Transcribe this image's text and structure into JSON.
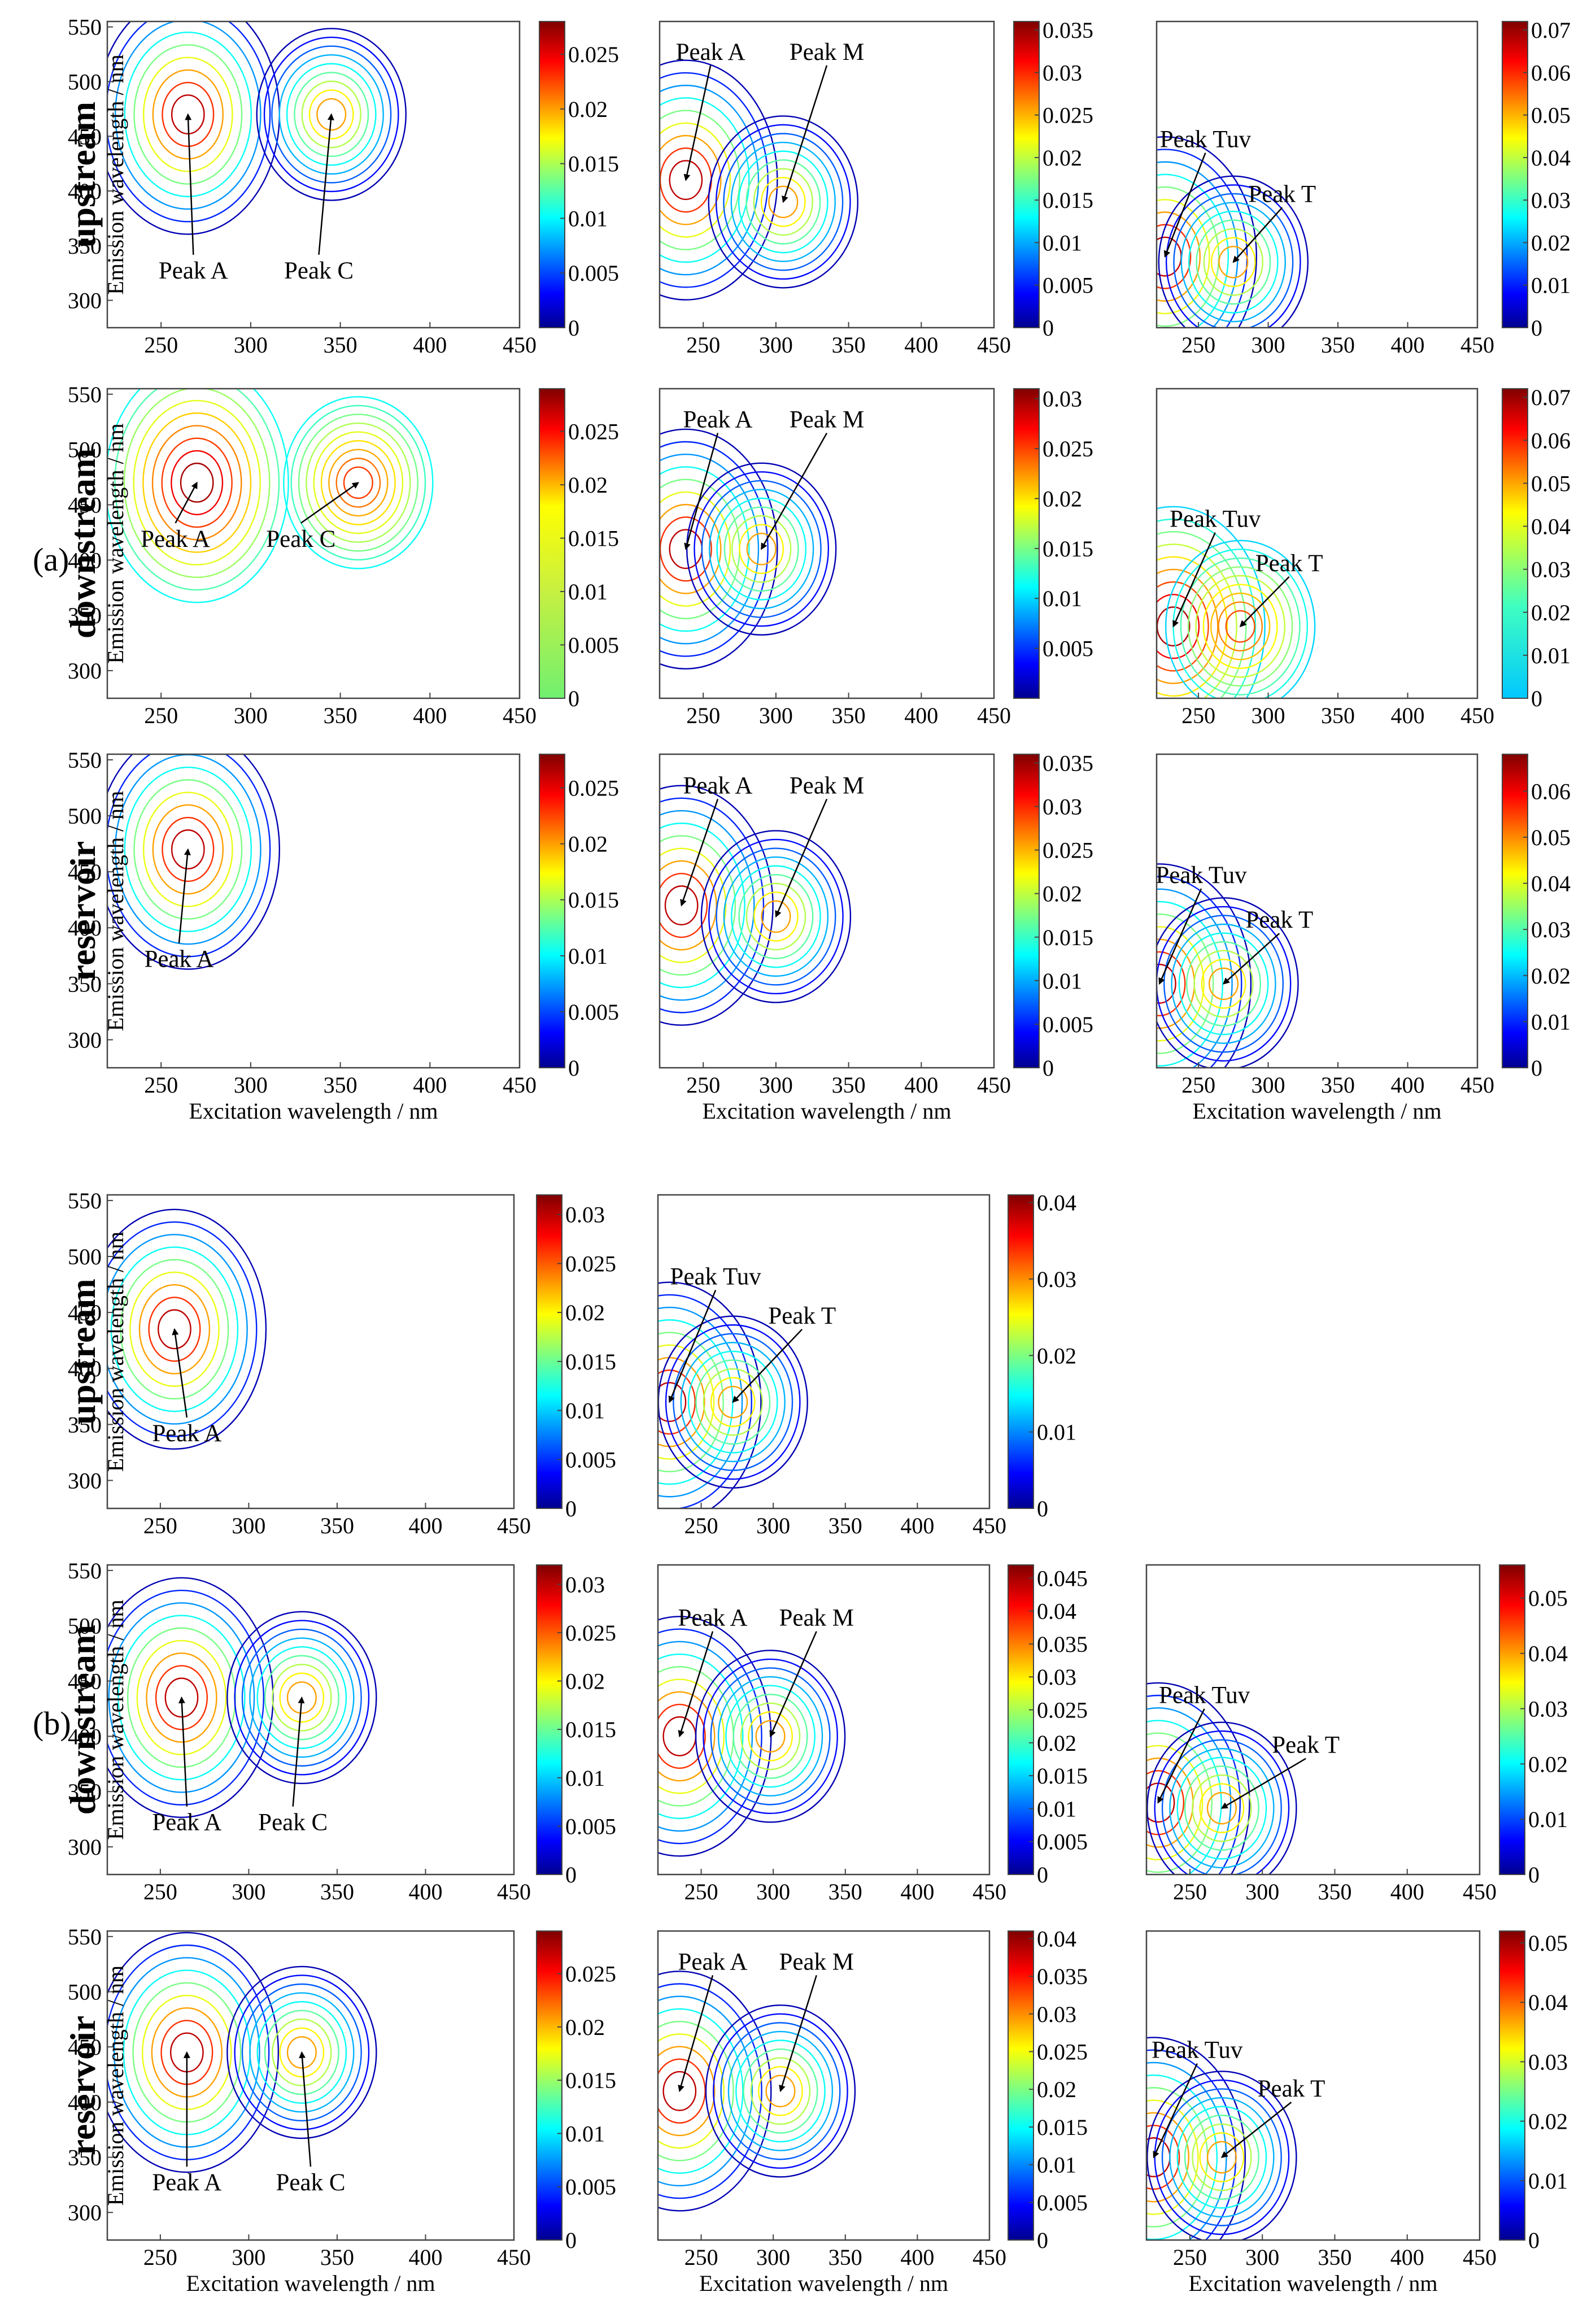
{
  "chart_data": {
    "type": "contour",
    "group_labels": [
      "(a)",
      "(b)"
    ],
    "x_axis_label": "Excitation wavelength / nm",
    "y_axis_label": "Emission wavelength / nm",
    "panels": [
      {
        "group": 0,
        "row": 0,
        "col": 0,
        "row_label": "upstream",
        "show_ylabel": true,
        "show_xlabel": false,
        "xticks": [
          250,
          300,
          350,
          400,
          450
        ],
        "xlim": [
          220,
          450
        ],
        "yticks": [
          300,
          350,
          400,
          450,
          500,
          550
        ],
        "ylim": [
          275,
          555
        ],
        "cbar_ticks": [
          "0",
          "0.005",
          "0.01",
          "0.015",
          "0.02",
          "0.025"
        ],
        "cbar_max": 0.028,
        "cbar_colormap": "jet",
        "peaks": [
          {
            "label": "Peak A",
            "x": 265,
            "y": 470
          },
          {
            "label": "Peak C",
            "x": 345,
            "y": 470
          }
        ],
        "labels": [
          {
            "label": "Peak A",
            "x": 268,
            "y": 320
          },
          {
            "label": "Peak C",
            "x": 338,
            "y": 320
          }
        ]
      },
      {
        "group": 0,
        "row": 0,
        "col": 1,
        "show_ylabel": false,
        "show_xlabel": false,
        "xticks": [
          250,
          300,
          350,
          400,
          450
        ],
        "xlim": [
          220,
          450
        ],
        "cbar_ticks": [
          "0",
          "0.005",
          "0.01",
          "0.015",
          "0.02",
          "0.025",
          "0.03",
          "0.035"
        ],
        "cbar_max": 0.036,
        "cbar_colormap": "jet",
        "peaks": [
          {
            "label": "Peak A",
            "x": 238,
            "y": 410
          },
          {
            "label": "Peak M",
            "x": 305,
            "y": 390
          }
        ],
        "labels": [
          {
            "label": "Peak A",
            "x": 255,
            "y": 520
          },
          {
            "label": "Peak M",
            "x": 335,
            "y": 520
          }
        ]
      },
      {
        "group": 0,
        "row": 0,
        "col": 2,
        "show_ylabel": false,
        "show_xlabel": false,
        "xticks": [
          250,
          300,
          350,
          400,
          450
        ],
        "xlim": [
          220,
          450
        ],
        "cbar_ticks": [
          "0",
          "0.01",
          "0.02",
          "0.03",
          "0.04",
          "0.05",
          "0.06",
          "0.07"
        ],
        "cbar_max": 0.072,
        "cbar_colormap": "jet",
        "peaks": [
          {
            "label": "Peak Tuv",
            "x": 226,
            "y": 340
          },
          {
            "label": "Peak T",
            "x": 275,
            "y": 335
          }
        ],
        "labels": [
          {
            "label": "Peak Tuv",
            "x": 255,
            "y": 440
          },
          {
            "label": "Peak T",
            "x": 310,
            "y": 390
          }
        ]
      },
      {
        "group": 0,
        "row": 1,
        "col": 0,
        "row_label": "downstream",
        "show_ylabel": true,
        "show_xlabel": false,
        "xticks": [
          250,
          300,
          350,
          400,
          450
        ],
        "xlim": [
          220,
          450
        ],
        "yticks": [
          300,
          350,
          400,
          450,
          500,
          550
        ],
        "ylim": [
          275,
          555
        ],
        "cbar_ticks": [
          "0",
          "0.005",
          "0.01",
          "0.015",
          "0.02",
          "0.025"
        ],
        "cbar_max": 0.029,
        "cbar_colormap": "jet_green",
        "peaks": [
          {
            "label": "Peak A",
            "x": 270,
            "y": 470
          },
          {
            "label": "Peak C",
            "x": 360,
            "y": 470
          }
        ],
        "labels": [
          {
            "label": "Peak A",
            "x": 258,
            "y": 412
          },
          {
            "label": "Peak C",
            "x": 328,
            "y": 412
          }
        ]
      },
      {
        "group": 0,
        "row": 1,
        "col": 1,
        "show_ylabel": false,
        "show_xlabel": false,
        "xticks": [
          250,
          300,
          350,
          400,
          450
        ],
        "xlim": [
          220,
          450
        ],
        "cbar_ticks": [
          "0.005",
          "0.01",
          "0.015",
          "0.02",
          "0.025",
          "0.03"
        ],
        "cbar_max": 0.031,
        "cbar_colormap": "jet",
        "peaks": [
          {
            "label": "Peak A",
            "x": 238,
            "y": 410
          },
          {
            "label": "Peak M",
            "x": 290,
            "y": 410
          }
        ],
        "labels": [
          {
            "label": "Peak A",
            "x": 260,
            "y": 520
          },
          {
            "label": "Peak M",
            "x": 335,
            "y": 520
          }
        ]
      },
      {
        "group": 0,
        "row": 1,
        "col": 2,
        "show_ylabel": false,
        "show_xlabel": false,
        "xticks": [
          250,
          300,
          350,
          400,
          450
        ],
        "xlim": [
          220,
          450
        ],
        "cbar_ticks": [
          "0",
          "0.01",
          "0.02",
          "0.03",
          "0.04",
          "0.05",
          "0.06",
          "0.07"
        ],
        "cbar_max": 0.072,
        "cbar_colormap": "jet_cyan",
        "peaks": [
          {
            "label": "Peak Tuv",
            "x": 232,
            "y": 340
          },
          {
            "label": "Peak T",
            "x": 280,
            "y": 340
          }
        ],
        "labels": [
          {
            "label": "Peak Tuv",
            "x": 262,
            "y": 430
          },
          {
            "label": "Peak T",
            "x": 315,
            "y": 390
          }
        ]
      },
      {
        "group": 0,
        "row": 2,
        "col": 0,
        "row_label": "reservoir",
        "show_ylabel": true,
        "show_xlabel": true,
        "xticks": [
          250,
          300,
          350,
          400,
          450
        ],
        "xlim": [
          220,
          450
        ],
        "yticks": [
          300,
          350,
          400,
          450,
          500,
          550
        ],
        "ylim": [
          275,
          555
        ],
        "cbar_ticks": [
          "0",
          "0.005",
          "0.01",
          "0.015",
          "0.02",
          "0.025"
        ],
        "cbar_max": 0.028,
        "cbar_colormap": "jet",
        "peaks": [
          {
            "label": "Peak A",
            "x": 265,
            "y": 470
          }
        ],
        "labels": [
          {
            "label": "Peak A",
            "x": 260,
            "y": 365
          }
        ]
      },
      {
        "group": 0,
        "row": 2,
        "col": 1,
        "show_ylabel": false,
        "show_xlabel": true,
        "xticks": [
          250,
          300,
          350,
          400,
          450
        ],
        "xlim": [
          220,
          450
        ],
        "cbar_ticks": [
          "0",
          "0.005",
          "0.01",
          "0.015",
          "0.02",
          "0.025",
          "0.03",
          "0.035"
        ],
        "cbar_max": 0.036,
        "cbar_colormap": "jet",
        "peaks": [
          {
            "label": "Peak A",
            "x": 235,
            "y": 420
          },
          {
            "label": "Peak M",
            "x": 300,
            "y": 410
          }
        ],
        "labels": [
          {
            "label": "Peak A",
            "x": 260,
            "y": 520
          },
          {
            "label": "Peak M",
            "x": 335,
            "y": 520
          }
        ]
      },
      {
        "group": 0,
        "row": 2,
        "col": 2,
        "show_ylabel": false,
        "show_xlabel": true,
        "xticks": [
          250,
          300,
          350,
          400,
          450
        ],
        "xlim": [
          220,
          450
        ],
        "cbar_ticks": [
          "0",
          "0.01",
          "0.02",
          "0.03",
          "0.04",
          "0.05",
          "0.06"
        ],
        "cbar_max": 0.068,
        "cbar_colormap": "jet",
        "peaks": [
          {
            "label": "Peak Tuv",
            "x": 222,
            "y": 350
          },
          {
            "label": "Peak T",
            "x": 268,
            "y": 350
          }
        ],
        "labels": [
          {
            "label": "Peak Tuv",
            "x": 252,
            "y": 440
          },
          {
            "label": "Peak T",
            "x": 308,
            "y": 400
          }
        ]
      },
      {
        "group": 1,
        "row": 0,
        "col": 0,
        "row_label": "upstream",
        "show_ylabel": true,
        "show_xlabel": false,
        "xticks": [
          250,
          300,
          350,
          400,
          450
        ],
        "xlim": [
          220,
          450
        ],
        "yticks": [
          300,
          350,
          400,
          450,
          500,
          550
        ],
        "ylim": [
          275,
          555
        ],
        "cbar_ticks": [
          "0",
          "0.005",
          "0.01",
          "0.015",
          "0.02",
          "0.025",
          "0.03"
        ],
        "cbar_max": 0.032,
        "cbar_colormap": "jet",
        "peaks": [
          {
            "label": "Peak A",
            "x": 258,
            "y": 435
          }
        ],
        "labels": [
          {
            "label": "Peak A",
            "x": 265,
            "y": 335
          }
        ]
      },
      {
        "group": 1,
        "row": 0,
        "col": 1,
        "show_ylabel": false,
        "show_xlabel": false,
        "xticks": [
          250,
          300,
          350,
          400,
          450
        ],
        "xlim": [
          220,
          450
        ],
        "cbar_ticks": [
          "0",
          "0.01",
          "0.02",
          "0.03",
          "0.04"
        ],
        "cbar_max": 0.041,
        "cbar_colormap": "jet",
        "peaks": [
          {
            "label": "Peak Tuv",
            "x": 228,
            "y": 370
          },
          {
            "label": "Peak T",
            "x": 272,
            "y": 370
          }
        ],
        "labels": [
          {
            "label": "Peak Tuv",
            "x": 260,
            "y": 475
          },
          {
            "label": "Peak T",
            "x": 320,
            "y": 440
          }
        ]
      },
      {
        "group": 1,
        "row": 1,
        "col": 0,
        "row_label": "downstream",
        "show_ylabel": true,
        "show_xlabel": false,
        "xticks": [
          250,
          300,
          350,
          400,
          450
        ],
        "xlim": [
          220,
          450
        ],
        "yticks": [
          300,
          350,
          400,
          450,
          500,
          550
        ],
        "ylim": [
          275,
          555
        ],
        "cbar_ticks": [
          "0",
          "0.005",
          "0.01",
          "0.015",
          "0.02",
          "0.025",
          "0.03"
        ],
        "cbar_max": 0.032,
        "cbar_colormap": "jet",
        "peaks": [
          {
            "label": "Peak A",
            "x": 262,
            "y": 435
          },
          {
            "label": "Peak C",
            "x": 330,
            "y": 435
          }
        ],
        "labels": [
          {
            "label": "Peak A",
            "x": 265,
            "y": 315
          },
          {
            "label": "Peak C",
            "x": 325,
            "y": 315
          }
        ]
      },
      {
        "group": 1,
        "row": 1,
        "col": 1,
        "show_ylabel": false,
        "show_xlabel": false,
        "xticks": [
          250,
          300,
          350,
          400,
          450
        ],
        "xlim": [
          220,
          450
        ],
        "cbar_ticks": [
          "0",
          "0.005",
          "0.01",
          "0.015",
          "0.02",
          "0.025",
          "0.03",
          "0.035",
          "0.04",
          "0.045"
        ],
        "cbar_max": 0.047,
        "cbar_colormap": "jet",
        "peaks": [
          {
            "label": "Peak A",
            "x": 235,
            "y": 400
          },
          {
            "label": "Peak M",
            "x": 298,
            "y": 400
          }
        ],
        "labels": [
          {
            "label": "Peak A",
            "x": 258,
            "y": 500
          },
          {
            "label": "Peak M",
            "x": 330,
            "y": 500
          }
        ]
      },
      {
        "group": 1,
        "row": 1,
        "col": 2,
        "show_ylabel": false,
        "show_xlabel": false,
        "xticks": [
          250,
          300,
          350,
          400,
          450
        ],
        "xlim": [
          220,
          450
        ],
        "cbar_ticks": [
          "0",
          "0.01",
          "0.02",
          "0.03",
          "0.04",
          "0.05"
        ],
        "cbar_max": 0.056,
        "cbar_colormap": "jet",
        "peaks": [
          {
            "label": "Peak Tuv",
            "x": 228,
            "y": 340
          },
          {
            "label": "Peak T",
            "x": 272,
            "y": 335
          }
        ],
        "labels": [
          {
            "label": "Peak Tuv",
            "x": 260,
            "y": 430
          },
          {
            "label": "Peak T",
            "x": 330,
            "y": 385
          }
        ]
      },
      {
        "group": 1,
        "row": 2,
        "col": 0,
        "row_label": "reservoir",
        "show_ylabel": true,
        "show_xlabel": true,
        "xticks": [
          250,
          300,
          350,
          400,
          450
        ],
        "xlim": [
          220,
          450
        ],
        "yticks": [
          300,
          350,
          400,
          450,
          500,
          550
        ],
        "ylim": [
          275,
          555
        ],
        "cbar_ticks": [
          "0",
          "0.005",
          "0.01",
          "0.015",
          "0.02",
          "0.025"
        ],
        "cbar_max": 0.029,
        "cbar_colormap": "jet",
        "peaks": [
          {
            "label": "Peak A",
            "x": 265,
            "y": 445
          },
          {
            "label": "Peak C",
            "x": 330,
            "y": 445
          }
        ],
        "labels": [
          {
            "label": "Peak A",
            "x": 265,
            "y": 320
          },
          {
            "label": "Peak C",
            "x": 335,
            "y": 320
          }
        ]
      },
      {
        "group": 1,
        "row": 2,
        "col": 1,
        "show_ylabel": false,
        "show_xlabel": true,
        "xticks": [
          250,
          300,
          350,
          400,
          450
        ],
        "xlim": [
          220,
          450
        ],
        "cbar_ticks": [
          "0",
          "0.005",
          "0.01",
          "0.015",
          "0.02",
          "0.025",
          "0.03",
          "0.035",
          "0.04"
        ],
        "cbar_max": 0.041,
        "cbar_colormap": "jet",
        "peaks": [
          {
            "label": "Peak A",
            "x": 235,
            "y": 410
          },
          {
            "label": "Peak M",
            "x": 305,
            "y": 410
          }
        ],
        "labels": [
          {
            "label": "Peak A",
            "x": 258,
            "y": 520
          },
          {
            "label": "Peak M",
            "x": 330,
            "y": 520
          }
        ]
      },
      {
        "group": 1,
        "row": 2,
        "col": 2,
        "show_ylabel": false,
        "show_xlabel": true,
        "xticks": [
          250,
          300,
          350,
          400,
          450
        ],
        "xlim": [
          220,
          450
        ],
        "cbar_ticks": [
          "0",
          "0.01",
          "0.02",
          "0.03",
          "0.04",
          "0.05"
        ],
        "cbar_max": 0.052,
        "cbar_colormap": "jet",
        "peaks": [
          {
            "label": "Peak Tuv",
            "x": 225,
            "y": 350
          },
          {
            "label": "Peak T",
            "x": 272,
            "y": 350
          }
        ],
        "labels": [
          {
            "label": "Peak Tuv",
            "x": 255,
            "y": 440
          },
          {
            "label": "Peak T",
            "x": 320,
            "y": 405
          }
        ]
      }
    ]
  }
}
